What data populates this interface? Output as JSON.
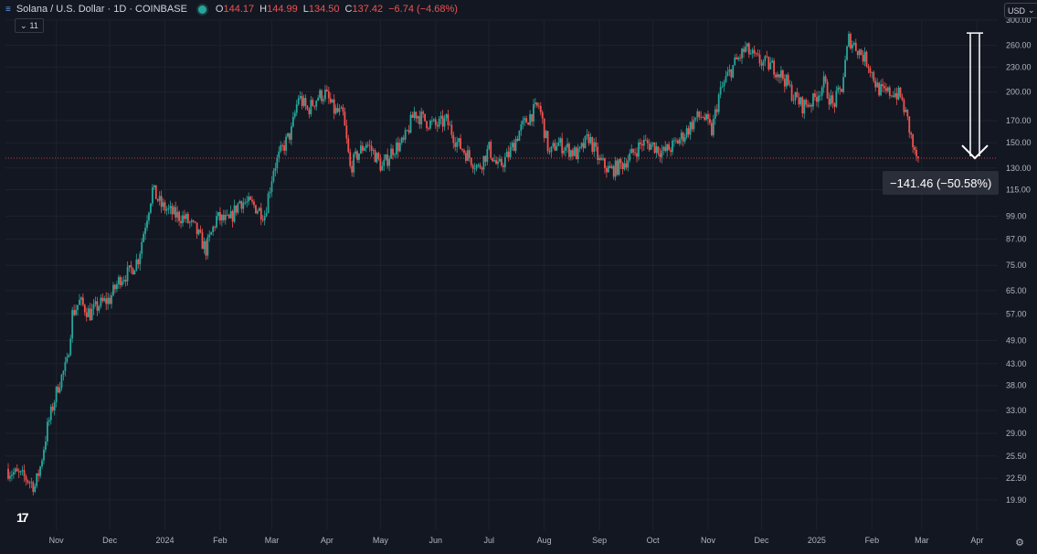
{
  "header": {
    "title": "Solana / U.S. Dollar · 1D · COINBASE",
    "ohlc": [
      {
        "key": "O",
        "value": "144.17"
      },
      {
        "key": "H",
        "value": "144.99"
      },
      {
        "key": "L",
        "value": "134.50"
      },
      {
        "key": "C",
        "value": "137.42"
      }
    ],
    "change": "−6.74 (−4.68%)"
  },
  "indicator_button": {
    "label": "11"
  },
  "currency_button": {
    "label": "USD"
  },
  "measure": {
    "label": "−141.46 (−50.58%)"
  },
  "logo": {
    "text": "17"
  },
  "colors": {
    "background": "#131722",
    "up": "#26a69a",
    "down": "#ef5350",
    "grid": "#1e222d",
    "text": "#b2b5be"
  },
  "chart_data": {
    "type": "candlestick",
    "y_scale": "log",
    "ylim": [
      18.5,
      300
    ],
    "y_ticks": [
      "300.00",
      "260.00",
      "230.00",
      "200.00",
      "170.00",
      "150.00",
      "130.00",
      "115.00",
      "99.00",
      "87.00",
      "75.00",
      "65.00",
      "57.00",
      "49.00",
      "43.00",
      "38.00",
      "33.00",
      "29.00",
      "25.50",
      "22.50",
      "19.90"
    ],
    "x_ticks": [
      "Nov",
      "Dec",
      "2024",
      "Feb",
      "Mar",
      "Apr",
      "May",
      "Jun",
      "Jul",
      "Aug",
      "Sep",
      "Oct",
      "Nov",
      "Dec",
      "2025",
      "Feb",
      "Mar",
      "Apr"
    ],
    "grid": true,
    "last_price": 137.42,
    "measurement": {
      "from": 278.88,
      "to": 137.42,
      "change": -141.46,
      "percent": -50.58
    },
    "series_close": [
      {
        "date": "2023-10-05",
        "close": 23.5
      },
      {
        "date": "2023-10-15",
        "close": 22.5
      },
      {
        "date": "2023-10-20",
        "close": 21.5
      },
      {
        "date": "2023-10-23",
        "close": 24
      },
      {
        "date": "2023-10-27",
        "close": 30
      },
      {
        "date": "2023-11-02",
        "close": 38
      },
      {
        "date": "2023-11-07",
        "close": 43
      },
      {
        "date": "2023-11-10",
        "close": 57
      },
      {
        "date": "2023-11-14",
        "close": 61
      },
      {
        "date": "2023-11-20",
        "close": 57
      },
      {
        "date": "2023-11-25",
        "close": 60
      },
      {
        "date": "2023-12-01",
        "close": 62
      },
      {
        "date": "2023-12-07",
        "close": 70
      },
      {
        "date": "2023-12-12",
        "close": 72
      },
      {
        "date": "2023-12-17",
        "close": 78
      },
      {
        "date": "2023-12-21",
        "close": 95
      },
      {
        "date": "2023-12-25",
        "close": 115
      },
      {
        "date": "2023-12-30",
        "close": 105
      },
      {
        "date": "2024-01-06",
        "close": 100
      },
      {
        "date": "2024-01-12",
        "close": 98
      },
      {
        "date": "2024-01-18",
        "close": 92
      },
      {
        "date": "2024-01-24",
        "close": 82
      },
      {
        "date": "2024-01-30",
        "close": 98
      },
      {
        "date": "2024-02-06",
        "close": 96
      },
      {
        "date": "2024-02-12",
        "close": 108
      },
      {
        "date": "2024-02-20",
        "close": 105
      },
      {
        "date": "2024-02-26",
        "close": 100
      },
      {
        "date": "2024-03-02",
        "close": 130
      },
      {
        "date": "2024-03-07",
        "close": 145
      },
      {
        "date": "2024-03-12",
        "close": 160
      },
      {
        "date": "2024-03-16",
        "close": 195
      },
      {
        "date": "2024-03-21",
        "close": 180
      },
      {
        "date": "2024-03-27",
        "close": 195
      },
      {
        "date": "2024-03-31",
        "close": 198
      },
      {
        "date": "2024-04-05",
        "close": 180
      },
      {
        "date": "2024-04-10",
        "close": 175
      },
      {
        "date": "2024-04-14",
        "close": 130
      },
      {
        "date": "2024-04-18",
        "close": 140
      },
      {
        "date": "2024-04-23",
        "close": 150
      },
      {
        "date": "2024-04-28",
        "close": 140
      },
      {
        "date": "2024-05-02",
        "close": 130
      },
      {
        "date": "2024-05-08",
        "close": 145
      },
      {
        "date": "2024-05-14",
        "close": 150
      },
      {
        "date": "2024-05-20",
        "close": 178
      },
      {
        "date": "2024-05-26",
        "close": 170
      },
      {
        "date": "2024-06-01",
        "close": 165
      },
      {
        "date": "2024-06-07",
        "close": 170
      },
      {
        "date": "2024-06-13",
        "close": 150
      },
      {
        "date": "2024-06-19",
        "close": 140
      },
      {
        "date": "2024-06-25",
        "close": 130
      },
      {
        "date": "2024-07-01",
        "close": 145
      },
      {
        "date": "2024-07-06",
        "close": 130
      },
      {
        "date": "2024-07-12",
        "close": 140
      },
      {
        "date": "2024-07-18",
        "close": 160
      },
      {
        "date": "2024-07-24",
        "close": 175
      },
      {
        "date": "2024-07-29",
        "close": 185
      },
      {
        "date": "2024-08-04",
        "close": 140
      },
      {
        "date": "2024-08-08",
        "close": 150
      },
      {
        "date": "2024-08-14",
        "close": 145
      },
      {
        "date": "2024-08-20",
        "close": 140
      },
      {
        "date": "2024-08-26",
        "close": 155
      },
      {
        "date": "2024-09-01",
        "close": 135
      },
      {
        "date": "2024-09-07",
        "close": 128
      },
      {
        "date": "2024-09-13",
        "close": 132
      },
      {
        "date": "2024-09-19",
        "close": 140
      },
      {
        "date": "2024-09-25",
        "close": 150
      },
      {
        "date": "2024-10-01",
        "close": 148
      },
      {
        "date": "2024-10-07",
        "close": 142
      },
      {
        "date": "2024-10-13",
        "close": 148
      },
      {
        "date": "2024-10-19",
        "close": 158
      },
      {
        "date": "2024-10-25",
        "close": 172
      },
      {
        "date": "2024-10-29",
        "close": 175
      },
      {
        "date": "2024-11-03",
        "close": 160
      },
      {
        "date": "2024-11-07",
        "close": 195
      },
      {
        "date": "2024-11-11",
        "close": 215
      },
      {
        "date": "2024-11-16",
        "close": 235
      },
      {
        "date": "2024-11-22",
        "close": 255
      },
      {
        "date": "2024-11-28",
        "close": 240
      },
      {
        "date": "2024-12-03",
        "close": 235
      },
      {
        "date": "2024-12-08",
        "close": 230
      },
      {
        "date": "2024-12-14",
        "close": 215
      },
      {
        "date": "2024-12-19",
        "close": 195
      },
      {
        "date": "2024-12-24",
        "close": 185
      },
      {
        "date": "2024-12-30",
        "close": 190
      },
      {
        "date": "2025-01-05",
        "close": 210
      },
      {
        "date": "2025-01-10",
        "close": 185
      },
      {
        "date": "2025-01-15",
        "close": 205
      },
      {
        "date": "2025-01-19",
        "close": 270
      },
      {
        "date": "2025-01-24",
        "close": 255
      },
      {
        "date": "2025-01-30",
        "close": 235
      },
      {
        "date": "2025-02-04",
        "close": 205
      },
      {
        "date": "2025-02-08",
        "close": 198
      },
      {
        "date": "2025-02-13",
        "close": 200
      },
      {
        "date": "2025-02-17",
        "close": 195
      },
      {
        "date": "2025-02-21",
        "close": 170
      },
      {
        "date": "2025-02-25",
        "close": 140
      },
      {
        "date": "2025-02-27",
        "close": 137.42
      }
    ]
  }
}
